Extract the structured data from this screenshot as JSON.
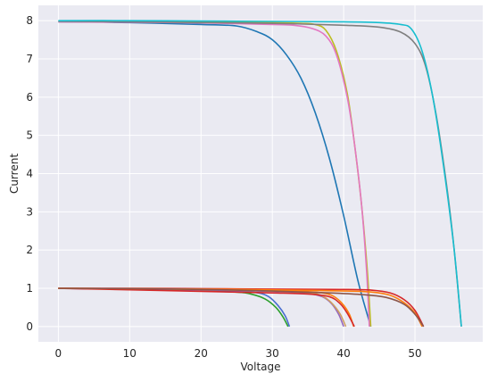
{
  "chart_data": {
    "type": "line",
    "title": "",
    "xlabel": "Voltage",
    "ylabel": "Current",
    "xlim": [
      -2.8,
      59.5
    ],
    "ylim": [
      -0.4,
      8.4
    ],
    "xticks": [
      0,
      10,
      20,
      30,
      40,
      50
    ],
    "yticks": [
      0,
      1,
      2,
      3,
      4,
      5,
      6,
      7,
      8
    ],
    "grid": true,
    "style": "seaborn-darkgrid",
    "colors": {
      "plot_background": "#eaeaf2",
      "grid": "#ffffff",
      "page_background": "#ffffff"
    },
    "series": [
      {
        "color": "#1f77b4",
        "x": [
          0,
          10,
          20,
          25,
          28,
          30,
          32,
          34,
          36,
          38,
          40,
          42,
          43.8
        ],
        "y": [
          7.97,
          7.95,
          7.9,
          7.86,
          7.7,
          7.5,
          7.1,
          6.5,
          5.6,
          4.4,
          2.9,
          1.2,
          0
        ]
      },
      {
        "color": "#bcbd22",
        "x": [
          0,
          10,
          20,
          30,
          34,
          36,
          37.5,
          39,
          40.5,
          41.5,
          42.5,
          43.3,
          43.8
        ],
        "y": [
          7.99,
          7.98,
          7.97,
          7.95,
          7.93,
          7.9,
          7.75,
          7.2,
          6.1,
          4.8,
          3.2,
          1.5,
          0
        ]
      },
      {
        "color": "#e377c2",
        "x": [
          0,
          10,
          20,
          30,
          33,
          35.5,
          37.5,
          39,
          40.5,
          41.5,
          42.5,
          43.2,
          43.6
        ],
        "y": [
          7.97,
          7.96,
          7.94,
          7.9,
          7.88,
          7.8,
          7.6,
          7.1,
          6.0,
          4.8,
          3.2,
          1.5,
          0
        ]
      },
      {
        "color": "#7f7f7f",
        "x": [
          0,
          10,
          20,
          30,
          40,
          45,
          48,
          50,
          51.5,
          53,
          54.5,
          55.5,
          56.5
        ],
        "y": [
          7.98,
          7.97,
          7.95,
          7.93,
          7.88,
          7.83,
          7.7,
          7.4,
          6.8,
          5.5,
          3.6,
          2.0,
          0
        ]
      },
      {
        "color": "#17becf",
        "x": [
          0,
          10,
          20,
          30,
          40,
          45,
          48,
          49.5,
          51,
          52.5,
          54,
          55.5,
          56.5
        ],
        "y": [
          8.0,
          8.0,
          7.99,
          7.98,
          7.97,
          7.95,
          7.9,
          7.78,
          7.2,
          6.0,
          4.2,
          2.0,
          0
        ]
      },
      {
        "color": "#2ca02c",
        "x": [
          0,
          5,
          10,
          15,
          20,
          25,
          27,
          29,
          30.5,
          31.5,
          32.2
        ],
        "y": [
          1.0,
          0.99,
          0.97,
          0.95,
          0.93,
          0.9,
          0.85,
          0.72,
          0.5,
          0.25,
          0
        ]
      },
      {
        "color": "#4a6fd0",
        "x": [
          0,
          5,
          10,
          15,
          20,
          25,
          28,
          29.5,
          30.8,
          31.8,
          32.4
        ],
        "y": [
          1.0,
          0.99,
          0.98,
          0.96,
          0.95,
          0.93,
          0.88,
          0.78,
          0.55,
          0.28,
          0
        ]
      },
      {
        "color": "#9467bd",
        "x": [
          0,
          10,
          20,
          30,
          33,
          35,
          37,
          38.3,
          39.3,
          40
        ],
        "y": [
          1.0,
          0.98,
          0.96,
          0.92,
          0.9,
          0.87,
          0.78,
          0.6,
          0.32,
          0
        ]
      },
      {
        "color": "#d0a060",
        "x": [
          0,
          10,
          20,
          30,
          33,
          35.5,
          37,
          38.3,
          39.5,
          40.3
        ],
        "y": [
          1.0,
          0.99,
          0.97,
          0.93,
          0.91,
          0.88,
          0.8,
          0.62,
          0.33,
          0
        ]
      },
      {
        "color": "#ff7f0e",
        "x": [
          0,
          10,
          20,
          30,
          34,
          37,
          38.5,
          39.8,
          40.8,
          41.4
        ],
        "y": [
          1.0,
          0.99,
          0.97,
          0.94,
          0.92,
          0.88,
          0.8,
          0.6,
          0.32,
          0
        ]
      },
      {
        "color": "#d62728",
        "x": [
          0,
          5,
          10,
          20,
          30,
          35,
          38,
          39.5,
          40.5,
          41.5
        ],
        "y": [
          1.0,
          0.98,
          0.96,
          0.92,
          0.88,
          0.85,
          0.78,
          0.6,
          0.35,
          0
        ]
      },
      {
        "color": "#d62728",
        "x": [
          0,
          10,
          20,
          30,
          40,
          44,
          46.5,
          48.5,
          50,
          51.2
        ],
        "y": [
          1.0,
          1.0,
          0.99,
          0.98,
          0.97,
          0.95,
          0.88,
          0.7,
          0.42,
          0
        ]
      },
      {
        "color": "#ff7f0e",
        "x": [
          0,
          10,
          20,
          30,
          40,
          44,
          46.5,
          48.5,
          50,
          51
        ],
        "y": [
          1.0,
          0.99,
          0.98,
          0.96,
          0.93,
          0.9,
          0.82,
          0.62,
          0.35,
          0
        ]
      },
      {
        "color": "#8c564b",
        "x": [
          0,
          10,
          20,
          30,
          38,
          43,
          46,
          48.5,
          50,
          51.2
        ],
        "y": [
          1.0,
          0.99,
          0.97,
          0.93,
          0.88,
          0.83,
          0.76,
          0.58,
          0.32,
          0
        ]
      }
    ]
  }
}
